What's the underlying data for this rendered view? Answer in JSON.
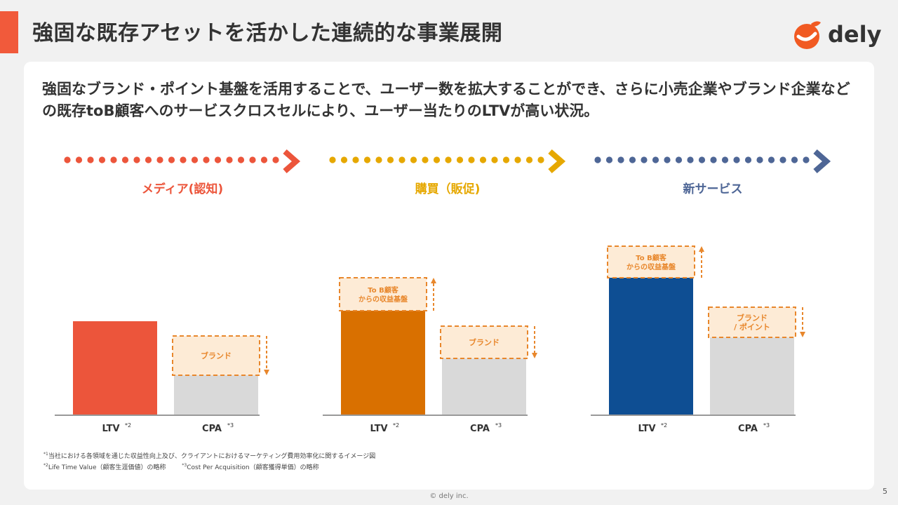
{
  "header": {
    "title": "強固な既存アセットを活かした連続的な事業展開",
    "logo_text": "dely",
    "accent_color": "#f15a3b"
  },
  "lead": "強固なブランド・ポイント基盤を活用することで、ユーザー数を拡大することができ、さらに小売企業やブランド企業などの既存toB顧客へのサービスクロスセルにより、ユーザー当たりのLTVが高い状況。",
  "chart_data": {
    "type": "bar",
    "panels": [
      {
        "phase_label": "メディア(認知)",
        "color": "#ec553b",
        "ltv": {
          "base": 1.33,
          "extra": 0,
          "extra_label": ""
        },
        "cpa": {
          "base": 0.56,
          "extra": 0.56,
          "extra_label": "ブランド",
          "direction": "down"
        }
      },
      {
        "phase_label": "購買（販促)",
        "color": "#e6a800",
        "bar_color": "#d97000",
        "ltv": {
          "base": 1.48,
          "extra": 0.47,
          "extra_label": "To B顧客\nからの収益基盤",
          "direction": "up"
        },
        "cpa": {
          "base": 0.8,
          "extra": 0.46,
          "extra_label": "ブランド",
          "direction": "down"
        }
      },
      {
        "phase_label": "新サービス",
        "color": "#4e6696",
        "bar_color": "#0e4e93",
        "ltv": {
          "base": 1.95,
          "extra": 0.45,
          "extra_label": "To B顧客\nからの収益基盤",
          "direction": "up"
        },
        "cpa": {
          "base": 1.1,
          "extra": 0.43,
          "extra_label": "ブランド\n/ ポイント",
          "direction": "down"
        }
      }
    ],
    "categories": [
      "LTV",
      "CPA"
    ],
    "category_notes": [
      "*2",
      "*3"
    ],
    "extra_fill": "#fdebd6",
    "extra_border": "#e8872c",
    "base_gray": "#d9d9d9",
    "arrow_text_color": "#e8872c"
  },
  "footnotes": {
    "fn1_mark": "*1",
    "fn1_text": "当社における各領域を通じた収益性向上及び、クライアントにおけるマーケティング費用効率化に関するイメージ図",
    "fn2_mark": "*2",
    "fn2_text": "Life Time Value（顧客生涯価値）の略称",
    "fn3_mark": "*3",
    "fn3_text": "Cost Per Acquisition（顧客獲得単価）の略称"
  },
  "footer": {
    "copyright": "© dely inc.",
    "page_number": "5"
  }
}
